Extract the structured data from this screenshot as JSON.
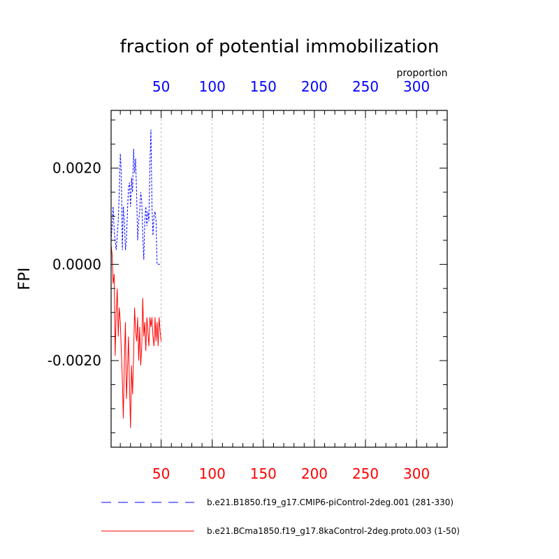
{
  "chart_data": {
    "type": "line",
    "title": "fraction of potential immobilization",
    "ylabel": "FPI",
    "top_axis_label": "proportion",
    "xlim": [
      1,
      330
    ],
    "ylim": [
      -0.0038,
      0.0032
    ],
    "x_ticks": [
      50,
      100,
      150,
      200,
      250,
      300
    ],
    "y_ticks": [
      0.002,
      0.0,
      -0.002
    ],
    "y_tick_labels": [
      "0.0020",
      "0.0000",
      "-0.0020"
    ],
    "grid": "vertical dashed",
    "legend_position": "bottom",
    "colors": {
      "top_axis": "#0000ff",
      "bottom_axis": "#ff0000"
    },
    "series": [
      {
        "name": "b.e21.B1850.f19_g17.CMIP6-piControl-2deg.001 (281-330)",
        "color": "#0000ff",
        "dash": "dashed",
        "x": [
          1,
          2,
          3,
          4,
          5,
          6,
          7,
          8,
          9,
          10,
          11,
          12,
          13,
          14,
          15,
          16,
          17,
          18,
          19,
          20,
          21,
          22,
          23,
          24,
          25,
          26,
          27,
          28,
          29,
          30,
          31,
          32,
          33,
          34,
          35,
          36,
          37,
          38,
          39,
          40,
          41,
          42,
          43,
          44,
          45,
          46,
          47,
          48,
          49,
          50
        ],
        "values": [
          0.0005,
          0.0008,
          0.0012,
          0.0007,
          0.0005,
          0.0003,
          0.0006,
          0.0009,
          0.0015,
          0.0023,
          0.0019,
          0.0003,
          0.0012,
          0.0009,
          0.0003,
          0.0005,
          0.0011,
          0.0016,
          0.0017,
          0.0012,
          0.0018,
          0.0015,
          0.0024,
          0.0019,
          0.0022,
          0.0014,
          0.0005,
          0.0009,
          0.0011,
          0.0015,
          0.0013,
          0.0006,
          0.0001,
          0.0009,
          0.0012,
          0.0008,
          0.0011,
          0.0009,
          0.0021,
          0.0028,
          0.0012,
          0.0006,
          0.001,
          0.0011,
          0.0009,
          0.0,
          0.0,
          0.0,
          0.0,
          0.0
        ]
      },
      {
        "name": "b.e21.BCma1850.f19_g17.8kaControl-2deg.proto.003 (1-50)",
        "color": "#ff0000",
        "dash": "solid",
        "x": [
          1,
          2,
          3,
          4,
          5,
          6,
          7,
          8,
          9,
          10,
          11,
          12,
          13,
          14,
          15,
          16,
          17,
          18,
          19,
          20,
          21,
          22,
          23,
          24,
          25,
          26,
          27,
          28,
          29,
          30,
          31,
          32,
          33,
          34,
          35,
          36,
          37,
          38,
          39,
          40,
          41,
          42,
          43,
          44,
          45,
          46,
          47,
          48,
          49,
          50
        ],
        "values": [
          0.0004,
          0.0002,
          -0.0004,
          -0.0002,
          -0.0019,
          -0.001,
          -0.0005,
          -0.0015,
          -0.0009,
          -0.0012,
          -0.0018,
          -0.0024,
          -0.0032,
          -0.002,
          -0.0012,
          -0.0028,
          -0.0022,
          -0.0015,
          -0.0025,
          -0.0034,
          -0.0021,
          -0.0027,
          -0.0019,
          -0.0009,
          -0.0014,
          -0.0016,
          -0.0011,
          -0.002,
          -0.0013,
          -0.0021,
          -0.0017,
          -0.0007,
          -0.0015,
          -0.0012,
          -0.0018,
          -0.0011,
          -0.0014,
          -0.0017,
          -0.0011,
          -0.0013,
          -0.0011,
          -0.0015,
          -0.0017,
          -0.0011,
          -0.0016,
          -0.0012,
          -0.0017,
          -0.0011,
          -0.0014,
          -0.0016
        ]
      }
    ]
  }
}
